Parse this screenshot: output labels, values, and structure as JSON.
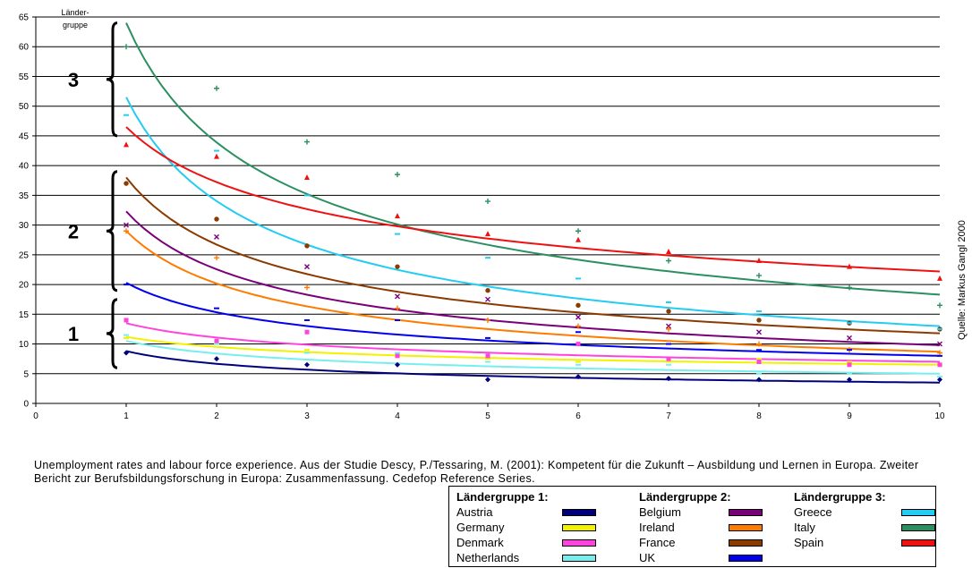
{
  "chart_data": {
    "type": "scatter",
    "xlim": [
      0,
      10
    ],
    "ylim": [
      0,
      65
    ],
    "x_ticks": [
      "0",
      "1",
      "2",
      "3",
      "4",
      "5",
      "6",
      "7",
      "8",
      "9",
      "10"
    ],
    "y_ticks": [
      "0",
      "5",
      "10",
      "15",
      "20",
      "25",
      "30",
      "35",
      "40",
      "45",
      "50",
      "55",
      "60",
      "65"
    ],
    "grid": "horizontal",
    "group_axis_label": "Länder-\ngruppe",
    "group_labels": [
      {
        "label": "3",
        "range": [
          45,
          64
        ]
      },
      {
        "label": "2",
        "range": [
          19,
          39
        ]
      },
      {
        "label": "1",
        "range": [
          6,
          17.5
        ]
      }
    ],
    "source": "Quelle: Markus Gangl 2000",
    "series": [
      {
        "name": "Austria",
        "group": 1,
        "color": "#00007b",
        "marker": "diamond",
        "x": [
          1,
          2,
          3,
          4,
          5,
          6,
          7,
          8,
          9,
          10
        ],
        "y": [
          8.5,
          7.5,
          6.5,
          6.5,
          4,
          4.5,
          4.2,
          4,
          4,
          4
        ],
        "trend": [
          8.8,
          3.5
        ]
      },
      {
        "name": "Germany",
        "group": 1,
        "color": "#f2f200",
        "marker": "dash",
        "x": [
          1,
          2,
          3,
          4,
          5,
          6,
          7,
          8,
          9,
          10
        ],
        "y": [
          11,
          10,
          9,
          8,
          7.5,
          7,
          7,
          7.5,
          7,
          6.5
        ],
        "trend": [
          11.2,
          6.5
        ]
      },
      {
        "name": "Denmark",
        "group": 1,
        "color": "#ff44dd",
        "marker": "square",
        "x": [
          1,
          2,
          3,
          4,
          5,
          6,
          7,
          8,
          9,
          10
        ],
        "y": [
          14,
          10.5,
          12,
          8,
          8,
          10,
          7.5,
          7,
          6.5,
          6.5
        ],
        "trend": [
          13.5,
          7
        ]
      },
      {
        "name": "Netherlands",
        "group": 1,
        "color": "#77eeee",
        "marker": "dash",
        "x": [
          1,
          2,
          3,
          4,
          5,
          6,
          7,
          8,
          9,
          10
        ],
        "y": [
          11.5,
          10,
          8.5,
          8.5,
          7,
          6.5,
          6.5,
          5,
          5,
          4.5
        ],
        "trend": [
          10.5,
          5
        ]
      },
      {
        "name": "Belgium",
        "group": 2,
        "color": "#7a007a",
        "marker": "x",
        "x": [
          1,
          2,
          3,
          4,
          5,
          6,
          7,
          8,
          9,
          10
        ],
        "y": [
          30,
          28,
          23,
          18,
          17.5,
          14.5,
          13,
          12,
          11,
          10
        ],
        "trend": [
          32.3,
          9.8
        ]
      },
      {
        "name": "Ireland",
        "group": 2,
        "color": "#ff7b00",
        "marker": "plus",
        "x": [
          1,
          2,
          3,
          4,
          5,
          6,
          7,
          8,
          9,
          10
        ],
        "y": [
          29,
          24.5,
          19.5,
          16,
          14,
          13,
          12.5,
          10,
          9,
          8.5
        ],
        "trend": [
          29,
          8.7
        ]
      },
      {
        "name": "France",
        "group": 2,
        "color": "#8b3a00",
        "marker": "dot",
        "x": [
          1,
          2,
          3,
          4,
          5,
          6,
          7,
          8,
          9,
          10
        ],
        "y": [
          37,
          31,
          26.5,
          23,
          19,
          16.5,
          15.5,
          14,
          13.5,
          12.5
        ],
        "trend": [
          38,
          11.8
        ]
      },
      {
        "name": "UK",
        "group": 2,
        "color": "#0000ee",
        "marker": "dash",
        "x": [
          1,
          2,
          3,
          4,
          5,
          6,
          7,
          8,
          9,
          10
        ],
        "y": [
          20,
          16,
          14,
          14,
          11,
          12,
          10,
          9,
          9,
          8
        ],
        "trend": [
          20.3,
          8
        ]
      },
      {
        "name": "Greece",
        "group": 3,
        "color": "#22ccf2",
        "marker": "dash",
        "x": [
          1,
          2,
          3,
          4,
          5,
          6,
          7,
          8,
          9,
          10
        ],
        "y": [
          48.5,
          42.5,
          35,
          28.5,
          24.5,
          21,
          17,
          15.5,
          13.5,
          12.5
        ],
        "trend": [
          51.5,
          13
        ]
      },
      {
        "name": "Italy",
        "group": 3,
        "color": "#2a9060",
        "marker": "plus",
        "x": [
          1,
          2,
          3,
          4,
          5,
          6,
          7,
          8,
          9,
          10
        ],
        "y": [
          60,
          53,
          44,
          38.5,
          34,
          29,
          24,
          21.5,
          19.5,
          16.5
        ],
        "trend": [
          64,
          18.3
        ]
      },
      {
        "name": "Spain",
        "group": 3,
        "color": "#ee1111",
        "marker": "triangle",
        "x": [
          1,
          2,
          3,
          4,
          5,
          6,
          7,
          8,
          9,
          10
        ],
        "y": [
          43.5,
          41.5,
          38,
          31.5,
          28.5,
          27.5,
          25.5,
          24,
          23,
          21
        ],
        "trend": [
          46.5,
          22.2
        ]
      }
    ]
  },
  "caption": "Unemployment rates and labour force experience. Aus der Studie Descy, P./Tessaring, M. (2001): Kompetent für die Zukunft – Ausbildung und Lernen in Europa. Zweiter Bericht zur Berufsbildungsforschung in Europa: Zusammenfassung. Cedefop Reference Series.",
  "legend": {
    "groups": [
      {
        "title": "Ländergruppe 1:",
        "items": [
          {
            "label": "Austria",
            "color": "#00007b"
          },
          {
            "label": "Germany",
            "color": "#f2f200"
          },
          {
            "label": "Denmark",
            "color": "#ff44dd"
          },
          {
            "label": "Netherlands",
            "color": "#77eeee"
          }
        ]
      },
      {
        "title": "Ländergruppe 2:",
        "items": [
          {
            "label": "Belgium",
            "color": "#7a007a"
          },
          {
            "label": "Ireland",
            "color": "#ff7b00"
          },
          {
            "label": "France",
            "color": "#8b3a00"
          },
          {
            "label": "UK",
            "color": "#0000ee"
          }
        ]
      },
      {
        "title": "Ländergruppe 3:",
        "items": [
          {
            "label": "Greece",
            "color": "#22ccf2"
          },
          {
            "label": "Italy",
            "color": "#2a9060"
          },
          {
            "label": "Spain",
            "color": "#ee1111"
          }
        ]
      }
    ]
  }
}
